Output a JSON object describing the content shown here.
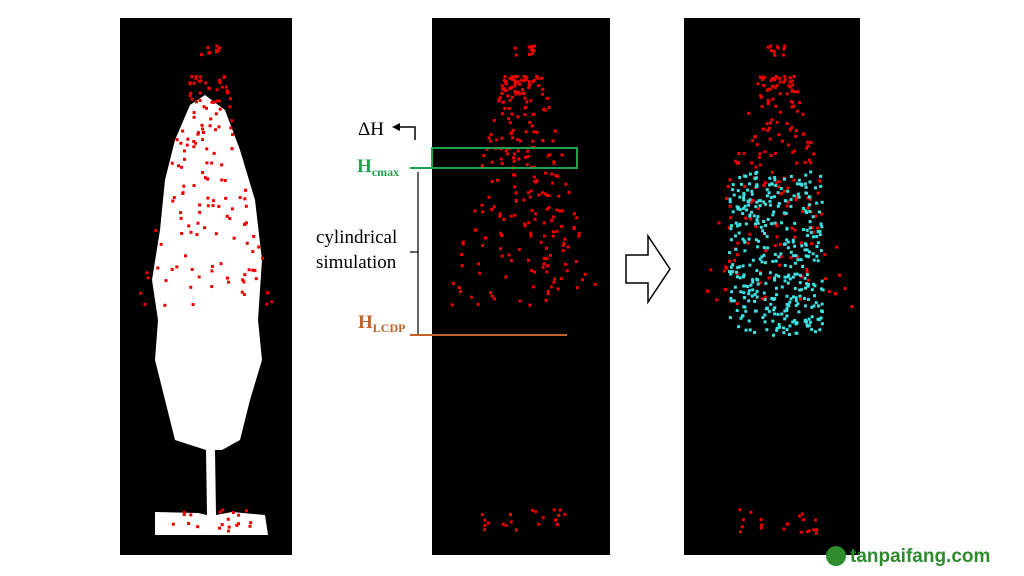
{
  "labels": {
    "delta_h": "ΔH",
    "h_cmax": {
      "main": "H",
      "sub": "cmax"
    },
    "cylindrical": "cylindrical",
    "simulation": "simulation",
    "h_lcdp": {
      "main": "H",
      "sub": "LCDP"
    }
  },
  "watermark": "tanpaifang.com"
}
